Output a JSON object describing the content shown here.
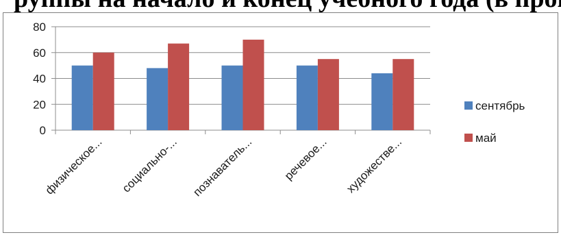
{
  "heading": {
    "text": "руппы на начало и конец учебного года (в процентах"
  },
  "chart_data": {
    "type": "bar",
    "categories": [
      "физическое...",
      "социально-...",
      "познаватель...",
      "речевое...",
      "художестве..."
    ],
    "series": [
      {
        "name": "сентябрь",
        "color": "#4f81bd",
        "values": [
          50,
          48,
          50,
          50,
          44
        ]
      },
      {
        "name": "май",
        "color": "#c0504d",
        "values": [
          60,
          67,
          70,
          55,
          55
        ]
      }
    ],
    "ylim": [
      0,
      80
    ],
    "yticks": [
      0,
      20,
      40,
      60,
      80
    ],
    "grid": true,
    "legend": "right",
    "title": "",
    "xlabel": "",
    "ylabel": ""
  }
}
